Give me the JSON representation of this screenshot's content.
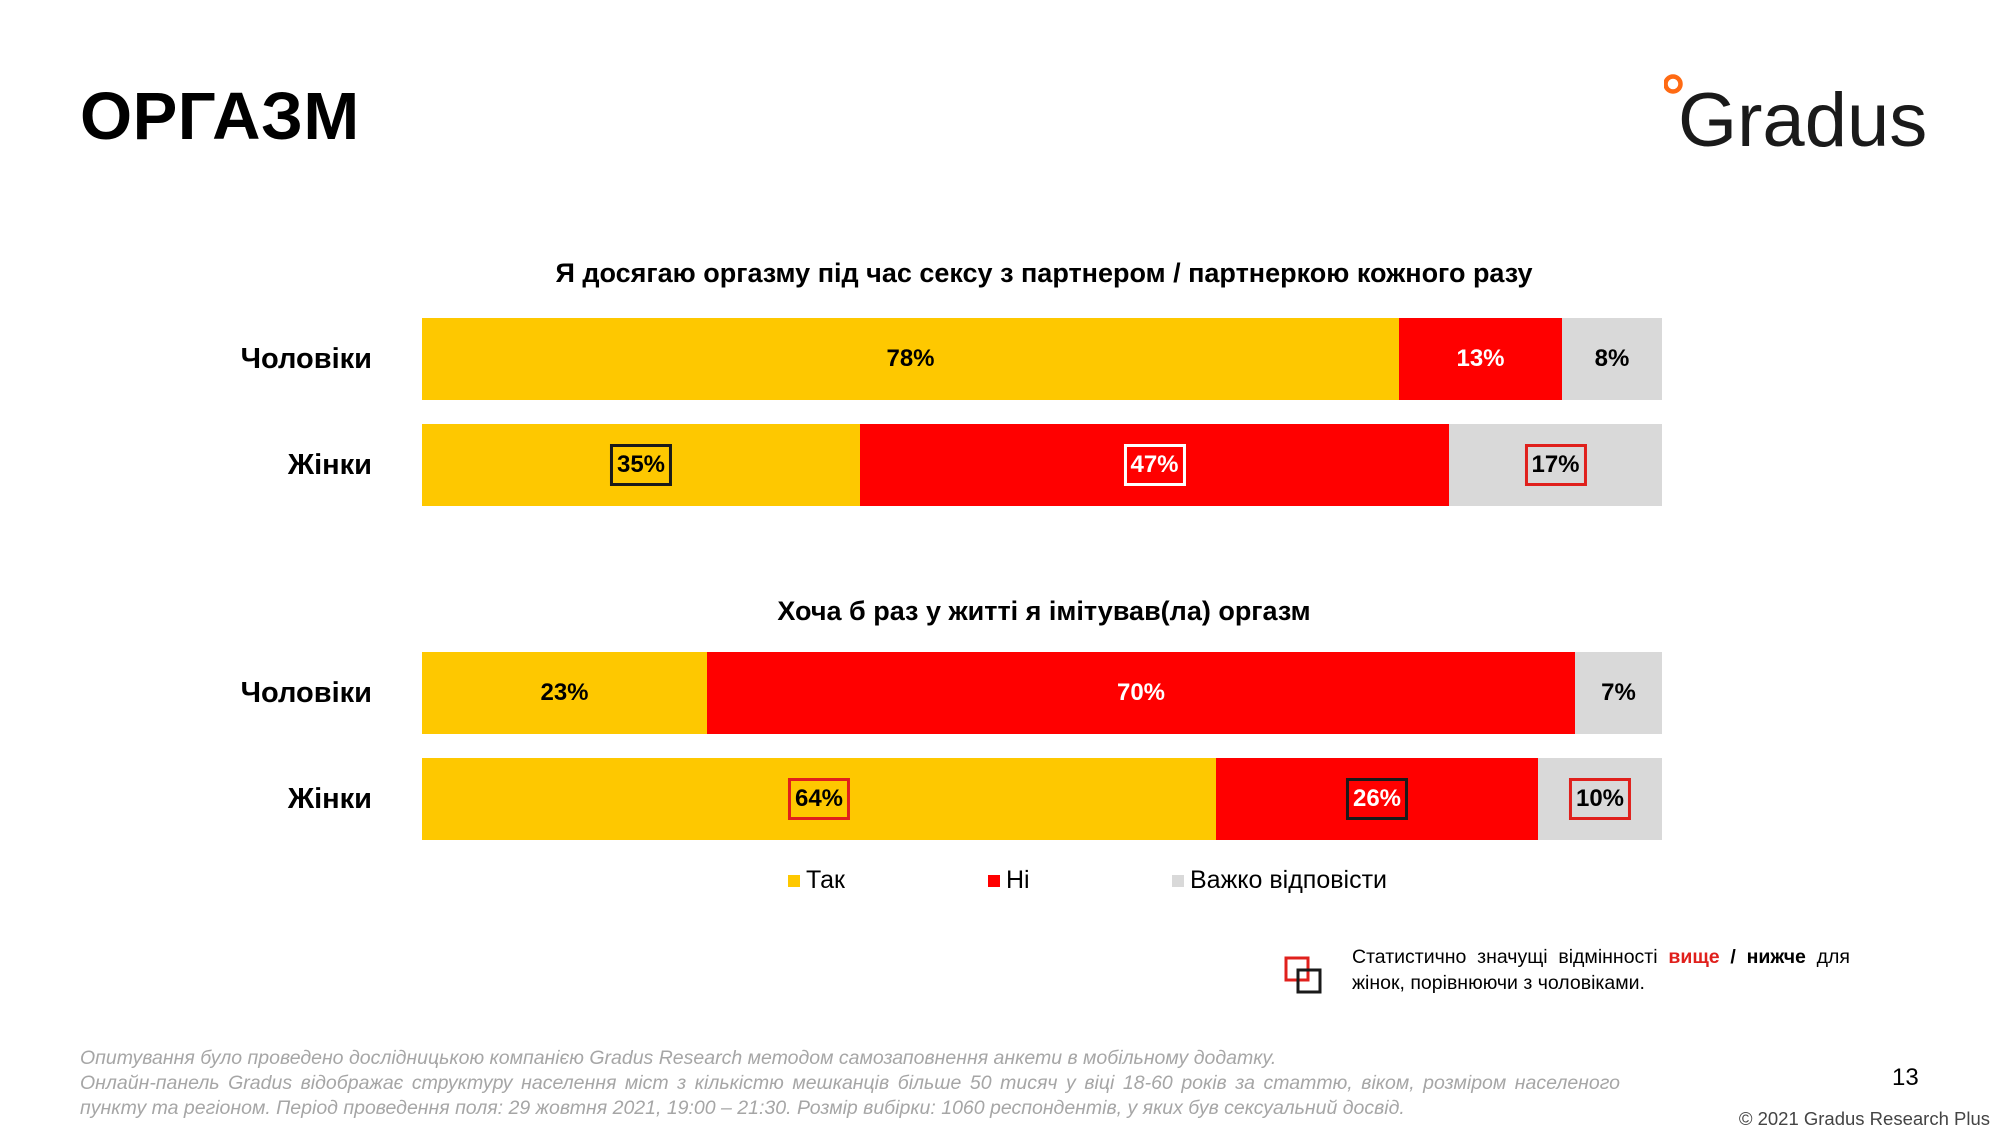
{
  "header": {
    "title": "ОРГАЗМ",
    "logo_text": "Gradus"
  },
  "colors": {
    "yes": "#FEC800",
    "no": "#FF0000",
    "hard": "#D9D9D9",
    "higher": "#E0201C",
    "lower": "#1A1A1A"
  },
  "chart_data": [
    {
      "type": "bar",
      "orientation": "horizontal",
      "stacked": true,
      "title": "Я досягаю оргазму під час сексу з партнером / партнеркою кожного разу",
      "categories": [
        "Чоловіки",
        "Жінки"
      ],
      "series": [
        {
          "name": "Так",
          "values": [
            78,
            35
          ],
          "labels": [
            "78%",
            "35%"
          ],
          "significance": [
            null,
            "lower"
          ]
        },
        {
          "name": "Ні",
          "values": [
            13,
            47
          ],
          "labels": [
            "13%",
            "47%"
          ],
          "significance": [
            null,
            "higher"
          ]
        },
        {
          "name": "Важко відповісти",
          "values": [
            8,
            17
          ],
          "labels": [
            "8%",
            "17%"
          ],
          "significance": [
            null,
            "higher"
          ]
        }
      ],
      "xlim": [
        0,
        100
      ]
    },
    {
      "type": "bar",
      "orientation": "horizontal",
      "stacked": true,
      "title": "Хоча б раз у житті я імітував(ла) оргазм",
      "categories": [
        "Чоловіки",
        "Жінки"
      ],
      "series": [
        {
          "name": "Так",
          "values": [
            23,
            64
          ],
          "labels": [
            "23%",
            "64%"
          ],
          "significance": [
            null,
            "higher"
          ]
        },
        {
          "name": "Ні",
          "values": [
            70,
            26
          ],
          "labels": [
            "70%",
            "26%"
          ],
          "significance": [
            null,
            "lower"
          ]
        },
        {
          "name": "Важко відповісти",
          "values": [
            7,
            10
          ],
          "labels": [
            "7%",
            "10%"
          ],
          "significance": [
            null,
            "higher"
          ]
        }
      ],
      "xlim": [
        0,
        100
      ]
    }
  ],
  "legend": [
    {
      "label": "Так",
      "color": "#FEC800"
    },
    {
      "label": "Ні",
      "color": "#FF0000"
    },
    {
      "label": "Важко відповісти",
      "color": "#D9D9D9"
    }
  ],
  "significance_note": {
    "prefix": "Статистично значущі відмінності",
    "higher": "вище",
    "separator": "/",
    "lower": "нижче",
    "suffix": "для жінок, порівнюючи з чоловіками."
  },
  "footnote": {
    "line1": "Опитування було проведено дослідницькою компанією Gradus Research методом самозаповнення анкети в мобільному додатку.",
    "line2": "Онлайн-панель Gradus відображає структуру населення міст з кількістю мешканців більше 50 тисяч у віці 18-60 років за статтю, віком, розміром населеного пункту та регіоном. Період проведення поля: 29 жовтня 2021, 19:00 – 21:30. Розмір вибірки: 1060 респондентів, у яких був сексуальний досвід."
  },
  "page_number": "13",
  "copyright": "© 2021 Gradus Research Plus"
}
